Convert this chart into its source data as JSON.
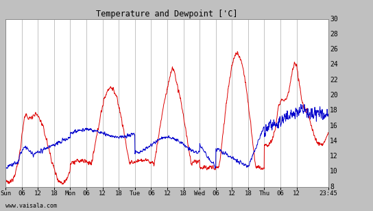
{
  "title": "Temperature and Dewpoint ['C]",
  "ylim": [
    8,
    30
  ],
  "yticks": [
    8,
    10,
    12,
    14,
    16,
    18,
    20,
    22,
    24,
    26,
    28,
    30
  ],
  "xtick_labels": [
    "Sun",
    "06",
    "12",
    "18",
    "Mon",
    "06",
    "12",
    "18",
    "Tue",
    "06",
    "12",
    "18",
    "Wed",
    "06",
    "12",
    "18",
    "Thu",
    "06",
    "12",
    "23:45"
  ],
  "xtick_positions": [
    0,
    6,
    12,
    18,
    24,
    30,
    36,
    42,
    48,
    54,
    60,
    66,
    72,
    78,
    84,
    90,
    96,
    102,
    108,
    119.75
  ],
  "xlim": [
    0,
    119.75
  ],
  "bg_color": "#c0c0c0",
  "plot_bg_color": "#ffffff",
  "grid_color": "#aaaaaa",
  "temp_color": "#dd0000",
  "dewp_color": "#0000cc",
  "watermark": "www.vaisala.com",
  "line_width": 0.7,
  "num_points": 1440
}
